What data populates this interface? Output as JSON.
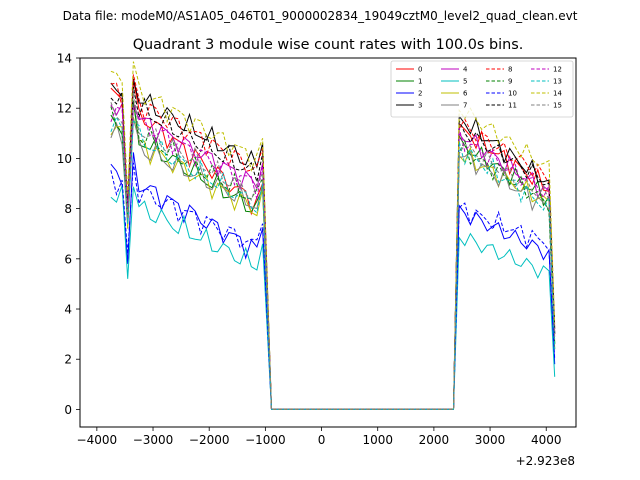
{
  "header": {
    "data_file_line": "Data file: modeM0/AS1A05_046T01_9000002834_19049cztM0_level2_quad_clean.evt"
  },
  "chart_data": {
    "type": "line",
    "title": "Quadrant 3 module wise count rates with 100.0s bins.",
    "xlabel": "",
    "ylabel": "",
    "x_offset_label": "+2.923e8",
    "xlim": [
      -4300,
      4530
    ],
    "ylim": [
      -0.7,
      14
    ],
    "x_ticks": [
      -4000,
      -3000,
      -2000,
      -1000,
      0,
      1000,
      2000,
      3000,
      4000
    ],
    "x_tick_labels": [
      "−4000",
      "−3000",
      "−2000",
      "−1000",
      "0",
      "1000",
      "2000",
      "3000",
      "4000"
    ],
    "y_ticks": [
      0,
      2,
      4,
      6,
      8,
      10,
      12,
      14
    ],
    "y_tick_labels": [
      "0",
      "2",
      "4",
      "6",
      "8",
      "10",
      "12",
      "14"
    ],
    "grid": false,
    "legend_position": "top-right",
    "gap_start": -950,
    "gap_end": 2350,
    "segment1_x": [
      -3750,
      -3650,
      -3550,
      -3450,
      -3350,
      -3250,
      -3150,
      -3050,
      -2950,
      -2850,
      -2750,
      -2650,
      -2550,
      -2450,
      -2350,
      -2250,
      -2150,
      -2050,
      -1950,
      -1850,
      -1750,
      -1650,
      -1550,
      -1450,
      -1350,
      -1250,
      -1150,
      -1050
    ],
    "segment2_x": [
      2450,
      2550,
      2650,
      2750,
      2850,
      2950,
      3050,
      3150,
      3250,
      3350,
      3450,
      3550,
      3650,
      3750,
      3850,
      3950,
      4050,
      4150
    ],
    "series": [
      {
        "name": "0",
        "color": "#ff0000",
        "dashed": false,
        "seg1_start": 12.6,
        "seg1_end": 8.0,
        "seg1_dip": 7.6,
        "seg2_start": 11.2,
        "seg2_end": 8.8,
        "end_value": 3.0
      },
      {
        "name": "1",
        "color": "#008000",
        "dashed": false,
        "seg1_start": 11.4,
        "seg1_end": 7.8,
        "seg1_dip": 7.4,
        "seg2_start": 10.6,
        "seg2_end": 8.4,
        "end_value": 2.6
      },
      {
        "name": "2",
        "color": "#0000ff",
        "dashed": false,
        "seg1_start": 9.6,
        "seg1_end": 6.2,
        "seg1_dip": 5.8,
        "seg2_start": 7.9,
        "seg2_end": 6.2,
        "end_value": 1.8
      },
      {
        "name": "3",
        "color": "#000000",
        "dashed": false,
        "seg1_start": 13.0,
        "seg1_end": 9.6,
        "seg1_dip": 8.0,
        "seg2_start": 11.6,
        "seg2_end": 9.0,
        "end_value": 3.2
      },
      {
        "name": "4",
        "color": "#bf00bf",
        "dashed": false,
        "seg1_start": 12.2,
        "seg1_end": 8.8,
        "seg1_dip": 7.8,
        "seg2_start": 11.0,
        "seg2_end": 8.6,
        "end_value": 3.0
      },
      {
        "name": "5",
        "color": "#00bfbf",
        "dashed": false,
        "seg1_start": 8.6,
        "seg1_end": 5.6,
        "seg1_dip": 5.2,
        "seg2_start": 6.9,
        "seg2_end": 5.4,
        "end_value": 1.3
      },
      {
        "name": "6",
        "color": "#bfbf00",
        "dashed": false,
        "seg1_start": 11.2,
        "seg1_end": 7.8,
        "seg1_dip": 7.2,
        "seg2_start": 10.2,
        "seg2_end": 8.2,
        "end_value": 2.4
      },
      {
        "name": "7",
        "color": "#808080",
        "dashed": false,
        "seg1_start": 11.0,
        "seg1_end": 8.0,
        "seg1_dip": 7.4,
        "seg2_start": 10.2,
        "seg2_end": 8.0,
        "end_value": 2.6
      },
      {
        "name": "8",
        "color": "#ff0000",
        "dashed": true,
        "seg1_start": 12.8,
        "seg1_end": 9.4,
        "seg1_dip": 8.2,
        "seg2_start": 11.4,
        "seg2_end": 9.2,
        "end_value": 3.2
      },
      {
        "name": "9",
        "color": "#008000",
        "dashed": true,
        "seg1_start": 11.6,
        "seg1_end": 8.2,
        "seg1_dip": 7.6,
        "seg2_start": 10.4,
        "seg2_end": 8.2,
        "end_value": 2.6
      },
      {
        "name": "10",
        "color": "#0000ff",
        "dashed": true,
        "seg1_start": 9.2,
        "seg1_end": 6.4,
        "seg1_dip": 6.2,
        "seg2_start": 8.0,
        "seg2_end": 6.6,
        "end_value": 2.0
      },
      {
        "name": "11",
        "color": "#000000",
        "dashed": true,
        "seg1_start": 12.6,
        "seg1_end": 9.2,
        "seg1_dip": 8.2,
        "seg2_start": 11.2,
        "seg2_end": 9.0,
        "end_value": 3.0
      },
      {
        "name": "12",
        "color": "#bf00bf",
        "dashed": true,
        "seg1_start": 12.0,
        "seg1_end": 8.8,
        "seg1_dip": 8.0,
        "seg2_start": 10.8,
        "seg2_end": 8.6,
        "end_value": 2.8
      },
      {
        "name": "13",
        "color": "#00bfbf",
        "dashed": true,
        "seg1_start": 11.4,
        "seg1_end": 8.0,
        "seg1_dip": 7.4,
        "seg2_start": 10.4,
        "seg2_end": 8.0,
        "end_value": 2.4
      },
      {
        "name": "14",
        "color": "#bfbf00",
        "dashed": true,
        "seg1_start": 13.3,
        "seg1_end": 9.8,
        "seg1_dip": 8.6,
        "seg2_start": 12.0,
        "seg2_end": 9.6,
        "end_value": 3.4
      },
      {
        "name": "15",
        "color": "#808080",
        "dashed": true,
        "seg1_start": 11.8,
        "seg1_end": 8.4,
        "seg1_dip": 7.6,
        "seg2_start": 10.6,
        "seg2_end": 8.4,
        "end_value": 2.8
      }
    ]
  }
}
